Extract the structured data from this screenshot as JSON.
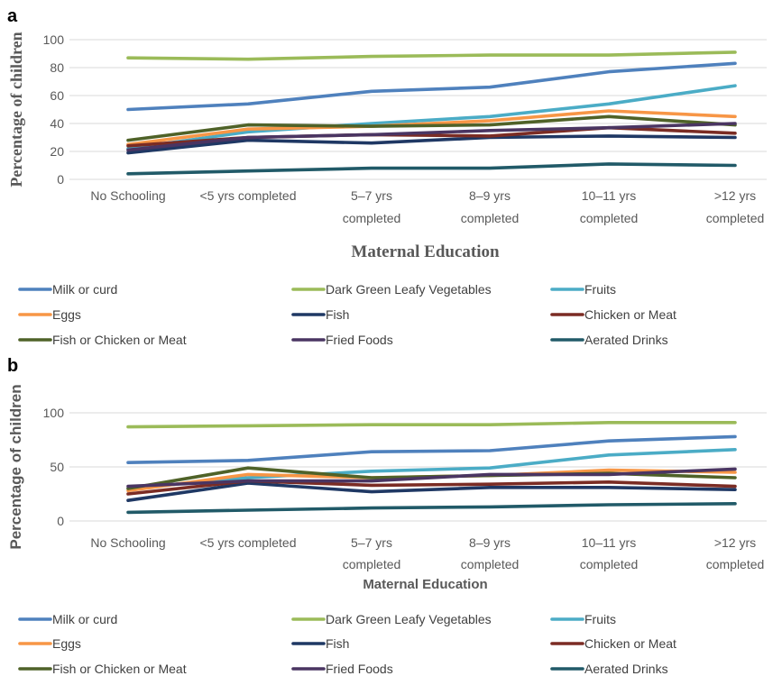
{
  "chart_data": [
    {
      "panel": "a",
      "type": "line",
      "xlabel": "Maternal Education",
      "ylabel": "Percentage of children",
      "ylim": [
        0,
        100
      ],
      "yticks": [
        "0",
        "20",
        "40",
        "60",
        "80",
        "100"
      ],
      "categories": [
        "No Schooling",
        "<5 yrs completed",
        "5–7 yrs completed",
        "8–9 yrs completed",
        "10–11 yrs completed",
        ">12 yrs completed"
      ],
      "grid": true,
      "legend": "bottom",
      "series": [
        {
          "name": "Milk or curd",
          "color": "#4F81BD",
          "values": [
            50,
            54,
            63,
            66,
            77,
            83
          ]
        },
        {
          "name": "Dark Green Leafy Vegetables",
          "color": "#9BBB59",
          "values": [
            87,
            86,
            88,
            89,
            89,
            91
          ]
        },
        {
          "name": "Fruits",
          "color": "#4BACC6",
          "values": [
            22,
            34,
            40,
            45,
            54,
            67
          ]
        },
        {
          "name": "Eggs",
          "color": "#F79646",
          "values": [
            25,
            36,
            38,
            42,
            49,
            45
          ]
        },
        {
          "name": "Fish",
          "color": "#1F3864",
          "values": [
            19,
            28,
            26,
            30,
            31,
            30
          ]
        },
        {
          "name": "Chicken or Meat",
          "color": "#7B2C24",
          "values": [
            24,
            30,
            32,
            31,
            37,
            33
          ]
        },
        {
          "name": "Fish or Chicken or Meat",
          "color": "#4F6228",
          "values": [
            28,
            39,
            38,
            39,
            45,
            39
          ]
        },
        {
          "name": "Fried Foods",
          "color": "#4A3562",
          "values": [
            21,
            30,
            32,
            35,
            37,
            40
          ]
        },
        {
          "name": "Aerated Drinks",
          "color": "#215A68",
          "values": [
            4,
            6,
            8,
            8,
            11,
            10
          ]
        }
      ]
    },
    {
      "panel": "b",
      "type": "line",
      "xlabel": "Maternal Education",
      "ylabel": "Percentage of children",
      "ylim": [
        0,
        100
      ],
      "yticks": [
        "0",
        "50",
        "100"
      ],
      "categories": [
        "No Schooling",
        "<5 yrs completed",
        "5–7 yrs completed",
        "8–9 yrs completed",
        "10–11 yrs completed",
        ">12 yrs completed"
      ],
      "grid": true,
      "legend": "bottom",
      "series": [
        {
          "name": "Milk or curd",
          "color": "#4F81BD",
          "values": [
            54,
            56,
            64,
            65,
            74,
            78
          ]
        },
        {
          "name": "Dark Green Leafy Vegetables",
          "color": "#9BBB59",
          "values": [
            87,
            88,
            89,
            89,
            91,
            91
          ]
        },
        {
          "name": "Fruits",
          "color": "#4BACC6",
          "values": [
            30,
            40,
            46,
            49,
            61,
            66
          ]
        },
        {
          "name": "Eggs",
          "color": "#F79646",
          "values": [
            28,
            43,
            40,
            42,
            47,
            45
          ]
        },
        {
          "name": "Fish",
          "color": "#1F3864",
          "values": [
            19,
            35,
            27,
            31,
            31,
            29
          ]
        },
        {
          "name": "Chicken or Meat",
          "color": "#7B2C24",
          "values": [
            25,
            37,
            33,
            34,
            36,
            32
          ]
        },
        {
          "name": "Fish or Chicken or Meat",
          "color": "#4F6228",
          "values": [
            30,
            49,
            40,
            42,
            44,
            40
          ]
        },
        {
          "name": "Fried Foods",
          "color": "#4A3562",
          "values": [
            32,
            37,
            37,
            43,
            43,
            48
          ]
        },
        {
          "name": "Aerated Drinks",
          "color": "#215A68",
          "values": [
            8,
            10,
            12,
            13,
            15,
            16
          ]
        }
      ]
    }
  ]
}
